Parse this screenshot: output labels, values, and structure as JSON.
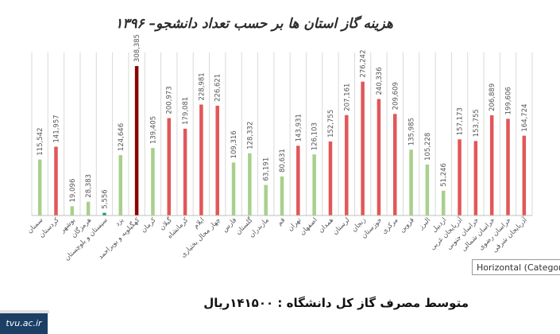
{
  "page": {
    "title": "هزینه گاز استان ها بر حسب تعداد دانشجو– ۱۳۹۶",
    "footer": "متوسط مصرف گاز کل دانشگاه :  ۱۴۱۵۰۰ریال",
    "tooltip": "Horizontal (Category",
    "brand": "tvu.ac.ir"
  },
  "chart_data": {
    "type": "bar",
    "title": "هزینه گاز استان ها بر حسب تعداد دانشجو– ۱۳۹۶",
    "xlabel": "",
    "ylabel": "",
    "ylim": [
      0,
      320000
    ],
    "grid": "vertical",
    "legend": "none",
    "categories": [
      "سمنان",
      "کردستان",
      "بوشهر",
      "هرمزگان",
      "سیستان و بلوچستان",
      "یزد",
      "کهگیلویه و بویراحمد",
      "کرمان",
      "گیلان",
      "کرمانشاه",
      "ایلام",
      "چهار محال بختیاری",
      "فارس",
      "گلستان",
      "مازندران",
      "قم",
      "تهران",
      "اصفهان",
      "همدان",
      "لرستان",
      "زنجان",
      "خوزستان",
      "مرکزی",
      "قزوین",
      "البرز",
      "اردبیل",
      "آذربایجان غربی",
      "خراسان جنوبی",
      "خراسان شمالی",
      "خراسان رضوی",
      "آذربایجان شرقی"
    ],
    "values": [
      115542,
      141957,
      19096,
      28383,
      5556,
      124646,
      308385,
      139405,
      200973,
      179081,
      228981,
      226621,
      109316,
      128332,
      63191,
      80631,
      143931,
      126103,
      152755,
      207161,
      276242,
      240336,
      209609,
      135985,
      105228,
      51246,
      157173,
      153755,
      206889,
      199606,
      164724
    ],
    "value_labels": [
      "115,542",
      "141,957",
      "19,096",
      "28,383",
      "5,556",
      "124,646",
      "308,385",
      "139,405",
      "200,973",
      "179,081",
      "228,981",
      "226,621",
      "109,316",
      "128,332",
      "63,191",
      "80,631",
      "143,931",
      "126,103",
      "152,755",
      "207,161",
      "276,242",
      "240,336",
      "209,609",
      "135,985",
      "105,228",
      "51,246",
      "157,173",
      "153,755",
      "206,889",
      "199,606",
      "164,724"
    ],
    "bar_colors": [
      "#a8d08d",
      "#e15759",
      "#a8d08d",
      "#a8d08d",
      "#1f9e6e",
      "#a8d08d",
      "#8b0000",
      "#a8d08d",
      "#e15759",
      "#e15759",
      "#e15759",
      "#e15759",
      "#a8d08d",
      "#a8d08d",
      "#a8d08d",
      "#a8d08d",
      "#e15759",
      "#a8d08d",
      "#e15759",
      "#e15759",
      "#e15759",
      "#e15759",
      "#e15759",
      "#a8d08d",
      "#a8d08d",
      "#a8d08d",
      "#e15759",
      "#e15759",
      "#e15759",
      "#e15759",
      "#e15759"
    ]
  }
}
